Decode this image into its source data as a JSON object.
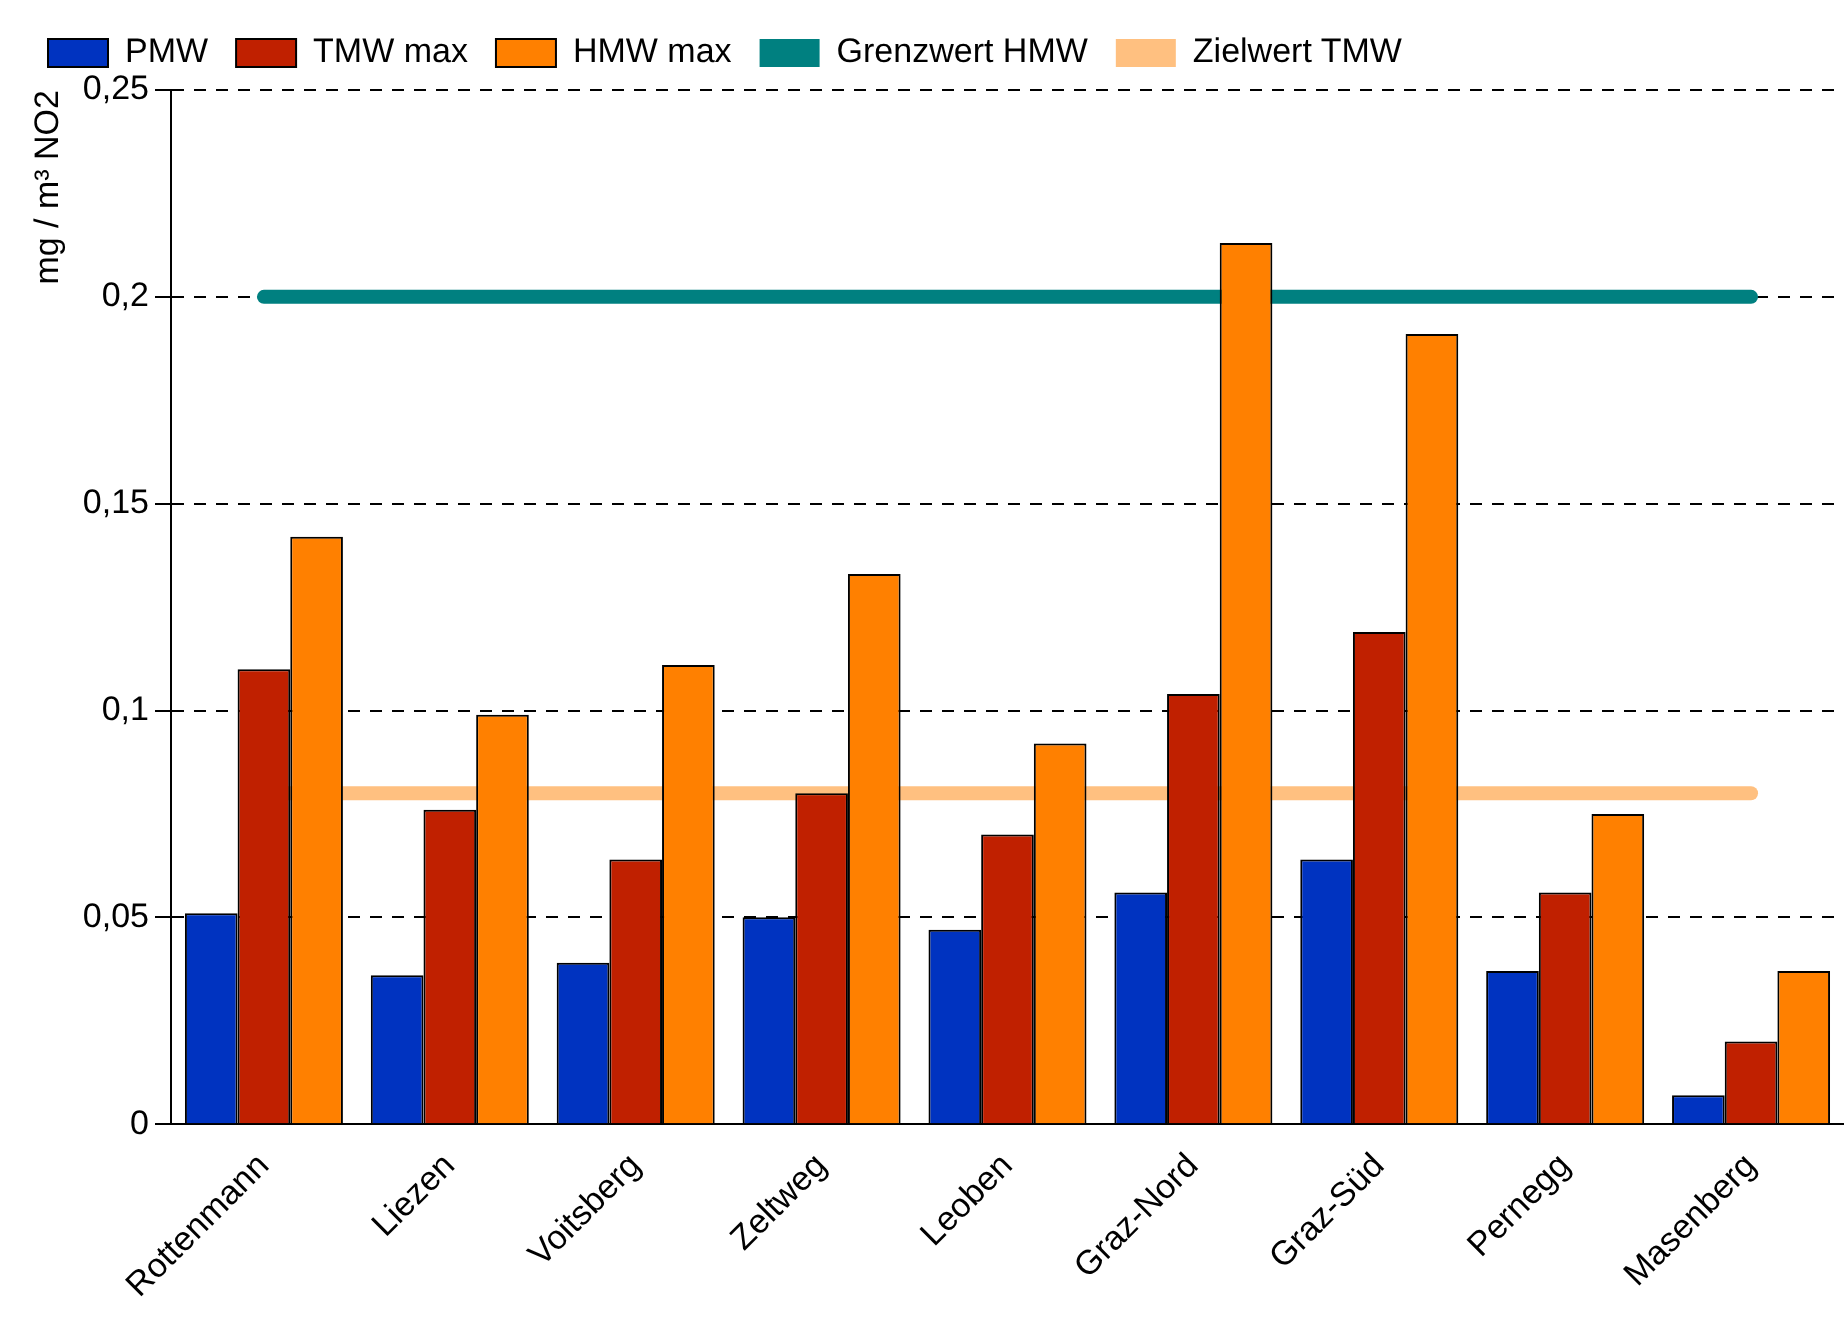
{
  "chart_data": {
    "type": "bar",
    "ylabel": "mg / m³ NO2",
    "categories": [
      "Rottenmann",
      "Liezen",
      "Voitsberg",
      "Zeltweg",
      "Leoben",
      "Graz-Nord",
      "Graz-Süd",
      "Pernegg",
      "Masenberg"
    ],
    "series": [
      {
        "name": "PMW",
        "color": "#0033c0",
        "values": [
          0.051,
          0.036,
          0.039,
          0.05,
          0.047,
          0.056,
          0.064,
          0.037,
          0.007
        ]
      },
      {
        "name": "TMW max",
        "color": "#c02000",
        "values": [
          0.11,
          0.076,
          0.064,
          0.08,
          0.07,
          0.104,
          0.119,
          0.056,
          0.02
        ]
      },
      {
        "name": "HMW max",
        "color": "#ff8000",
        "values": [
          0.142,
          0.099,
          0.111,
          0.133,
          0.092,
          0.213,
          0.191,
          0.075,
          0.037
        ]
      }
    ],
    "ref_lines": [
      {
        "axis": "y",
        "value": 0.2,
        "label": "Grenzwert HMW",
        "color": "#008080"
      },
      {
        "axis": "y",
        "value": 0.08,
        "label": "Zielwert TMW",
        "color": "#ffc080"
      }
    ],
    "ylim": [
      0,
      0.25
    ],
    "yticks": [
      0,
      {
        "value": 0.05,
        "label": "0,05"
      },
      {
        "value": 0.1,
        "label": "0,1"
      },
      {
        "value": 0.15,
        "label": "0,15"
      },
      {
        "value": 0.2,
        "label": "0,2"
      },
      {
        "value": 0.25,
        "label": "0,25"
      }
    ],
    "grid": "y",
    "legend": "top left"
  }
}
